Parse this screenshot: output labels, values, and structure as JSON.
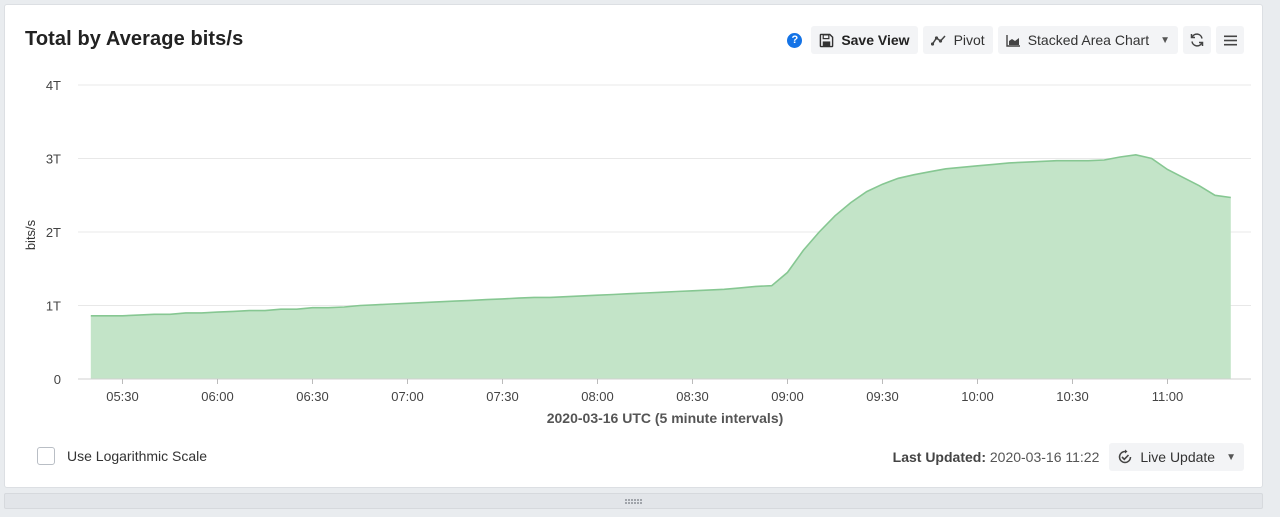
{
  "panel": {
    "title": "Total by Average bits/s"
  },
  "toolbar": {
    "help_glyph": "?",
    "save_label": "Save View",
    "pivot_label": "Pivot",
    "chart_type_label": "Stacked Area Chart",
    "icons": [
      "help-icon",
      "save-icon",
      "pivot-icon",
      "area-chart-icon",
      "chevron-down-icon",
      "refresh-icon",
      "menu-icon"
    ]
  },
  "footer": {
    "log_scale_label": "Use Logarithmic Scale",
    "log_scale_checked": false,
    "last_updated_label": "Last Updated:",
    "last_updated_value": "2020-03-16 11:22",
    "live_update_label": "Live Update"
  },
  "colors": {
    "area_fill": "#c3e4c8",
    "area_line": "#86c792",
    "grid": "#e8e8e8",
    "help": "#1473e6"
  },
  "chart_data": {
    "type": "area",
    "stacked": true,
    "xlabel": "2020-03-16 UTC (5 minute intervals)",
    "ylabel": "bits/s",
    "ylim": [
      0,
      4
    ],
    "y_unit": "T",
    "y_ticks": [
      0,
      1,
      2,
      3,
      4
    ],
    "y_tick_labels": [
      "0",
      "1T",
      "2T",
      "3T",
      "4T"
    ],
    "x_ticks": [
      "05:30",
      "06:00",
      "06:30",
      "07:00",
      "07:30",
      "08:00",
      "08:30",
      "09:00",
      "09:30",
      "10:00",
      "10:30",
      "11:00"
    ],
    "grid": true,
    "legend": "none",
    "series": [
      {
        "x": [
          "05:20",
          "05:25",
          "05:30",
          "05:35",
          "05:40",
          "05:45",
          "05:50",
          "05:55",
          "06:00",
          "06:05",
          "06:10",
          "06:15",
          "06:20",
          "06:25",
          "06:30",
          "06:35",
          "06:40",
          "06:45",
          "06:50",
          "06:55",
          "07:00",
          "07:05",
          "07:10",
          "07:15",
          "07:20",
          "07:25",
          "07:30",
          "07:35",
          "07:40",
          "07:45",
          "07:50",
          "07:55",
          "08:00",
          "08:05",
          "08:10",
          "08:15",
          "08:20",
          "08:25",
          "08:30",
          "08:35",
          "08:40",
          "08:45",
          "08:50",
          "08:55",
          "09:00",
          "09:05",
          "09:10",
          "09:15",
          "09:20",
          "09:25",
          "09:30",
          "09:35",
          "09:40",
          "09:45",
          "09:50",
          "09:55",
          "10:00",
          "10:05",
          "10:10",
          "10:15",
          "10:20",
          "10:25",
          "10:30",
          "10:35",
          "10:40",
          "10:45",
          "10:50",
          "10:55",
          "11:00",
          "11:05",
          "11:10",
          "11:15",
          "11:20"
        ],
        "values": [
          0.86,
          0.86,
          0.86,
          0.87,
          0.88,
          0.88,
          0.9,
          0.9,
          0.91,
          0.92,
          0.93,
          0.93,
          0.95,
          0.95,
          0.97,
          0.97,
          0.98,
          1.0,
          1.01,
          1.02,
          1.03,
          1.04,
          1.05,
          1.06,
          1.07,
          1.08,
          1.09,
          1.1,
          1.11,
          1.11,
          1.12,
          1.13,
          1.14,
          1.15,
          1.16,
          1.17,
          1.18,
          1.19,
          1.2,
          1.21,
          1.22,
          1.24,
          1.26,
          1.27,
          1.45,
          1.75,
          2.0,
          2.22,
          2.4,
          2.55,
          2.65,
          2.73,
          2.78,
          2.82,
          2.86,
          2.88,
          2.9,
          2.92,
          2.94,
          2.95,
          2.96,
          2.97,
          2.97,
          2.97,
          2.98,
          3.02,
          3.05,
          3.0,
          2.85,
          2.74,
          2.63,
          2.5,
          2.47
        ]
      }
    ]
  }
}
